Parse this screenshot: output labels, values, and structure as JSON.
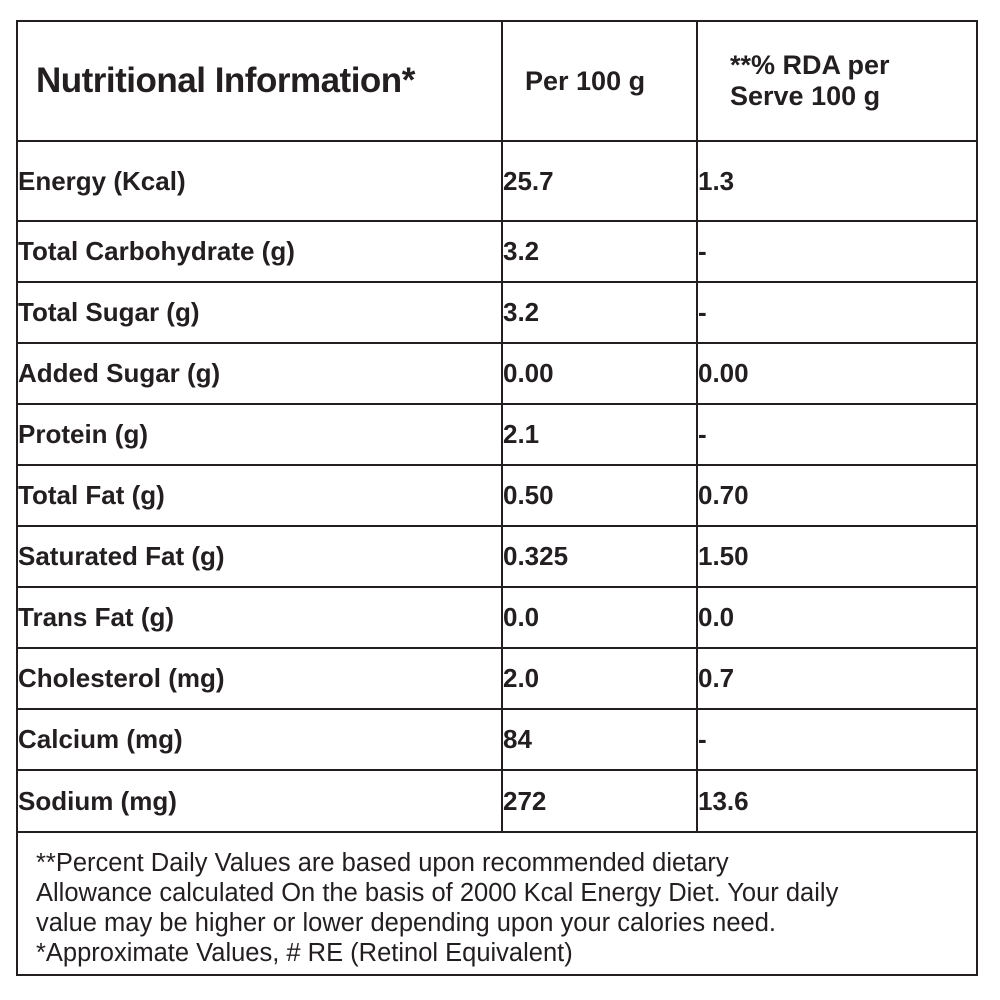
{
  "table": {
    "header": {
      "col1": "Nutritional Information*",
      "col2": "Per 100 g",
      "col3_line1": "**% RDA per",
      "col3_line2": "Serve 100 g"
    },
    "rows": [
      {
        "name": "Energy (Kcal)",
        "per100": "25.7",
        "rda": "1.3"
      },
      {
        "name": "Total Carbohydrate (g)",
        "per100": "3.2",
        "rda": "-"
      },
      {
        "name": "Total Sugar (g)",
        "per100": "3.2",
        "rda": "-"
      },
      {
        "name": "Added Sugar (g)",
        "per100": "0.00",
        "rda": "0.00"
      },
      {
        "name": "Protein (g)",
        "per100": "2.1",
        "rda": "-"
      },
      {
        "name": "Total Fat (g)",
        "per100": "0.50",
        "rda": "0.70"
      },
      {
        "name": "Saturated Fat (g)",
        "per100": "0.325",
        "rda": "1.50"
      },
      {
        "name": "Trans Fat (g)",
        "per100": "0.0",
        "rda": "0.0"
      },
      {
        "name": "Cholesterol (mg)",
        "per100": "2.0",
        "rda": "0.7"
      },
      {
        "name": "Calcium (mg)",
        "per100": "84",
        "rda": "-"
      },
      {
        "name": "Sodium (mg)",
        "per100": "272",
        "rda": "13.6"
      }
    ]
  },
  "footnote": {
    "line1": "**Percent Daily Values are based upon recommended dietary",
    "line2": "Allowance calculated On the basis of 2000 Kcal Energy Diet. Your daily",
    "line3": "value may be higher or lower depending upon your calories need.",
    "line4": "*Approximate Values, # RE (Retinol Equivalent)"
  }
}
